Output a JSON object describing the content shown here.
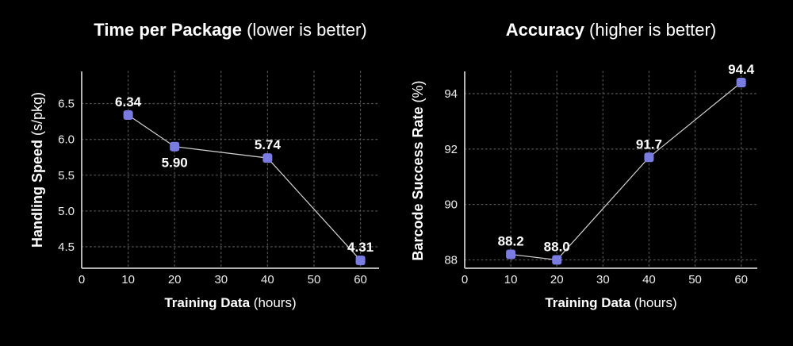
{
  "page": {
    "background": "#000000",
    "text_color": "#ffffff"
  },
  "colors": {
    "marker": "#7b7ce1",
    "series_line": "#d4d4d4",
    "axis_line": "#c9c9c9",
    "gridline": "#525252",
    "tick_text": "#ededed",
    "label_text": "#ffffff"
  },
  "chart_data": [
    {
      "type": "line",
      "title": {
        "main": "Time per Package",
        "note": "(lower is better)"
      },
      "xlabel": {
        "main": "Training Data",
        "note": "(hours)"
      },
      "ylabel": {
        "main": "Handling Speed",
        "note": "(s/pkg)"
      },
      "x": [
        10,
        20,
        40,
        60
      ],
      "y": [
        6.34,
        5.9,
        5.74,
        4.31
      ],
      "point_labels": [
        "6.34",
        "5.90",
        "5.74",
        "4.31"
      ],
      "point_label_positions": [
        "above",
        "below",
        "above",
        "above"
      ],
      "x_ticks": [
        0,
        10,
        20,
        30,
        40,
        50,
        60
      ],
      "x_tick_labels": [
        "0",
        "10",
        "20",
        "30",
        "40",
        "50",
        "60"
      ],
      "y_ticks": [
        4.5,
        5.0,
        5.5,
        6.0,
        6.5
      ],
      "y_tick_labels": [
        "4.5",
        "5.0",
        "5.5",
        "6.0",
        "6.5"
      ],
      "xlim": [
        0,
        64
      ],
      "ylim": [
        4.2,
        6.95
      ],
      "grid": "dotted",
      "legend": "none",
      "marker_color": "#7b7ce1",
      "line_color": "#d4d4d4"
    },
    {
      "type": "line",
      "title": {
        "main": "Accuracy",
        "note": "(higher is better)"
      },
      "xlabel": {
        "main": "Training Data",
        "note": "(hours)"
      },
      "ylabel": {
        "main": "Barcode Success Rate",
        "note": "(%)"
      },
      "x": [
        10,
        20,
        40,
        60
      ],
      "y": [
        88.2,
        88.0,
        91.7,
        94.4
      ],
      "point_labels": [
        "88.2",
        "88.0",
        "91.7",
        "94.4"
      ],
      "point_label_positions": [
        "above",
        "above",
        "above",
        "above"
      ],
      "x_ticks": [
        0,
        10,
        20,
        30,
        40,
        50,
        60
      ],
      "x_tick_labels": [
        "0",
        "10",
        "20",
        "30",
        "40",
        "50",
        "60"
      ],
      "y_ticks": [
        88,
        90,
        92,
        94
      ],
      "y_tick_labels": [
        "88",
        "90",
        "92",
        "94"
      ],
      "xlim": [
        0,
        63.5
      ],
      "ylim": [
        87.7,
        94.8
      ],
      "grid": "dotted",
      "legend": "none",
      "marker_color": "#7b7ce1",
      "line_color": "#d4d4d4"
    }
  ]
}
